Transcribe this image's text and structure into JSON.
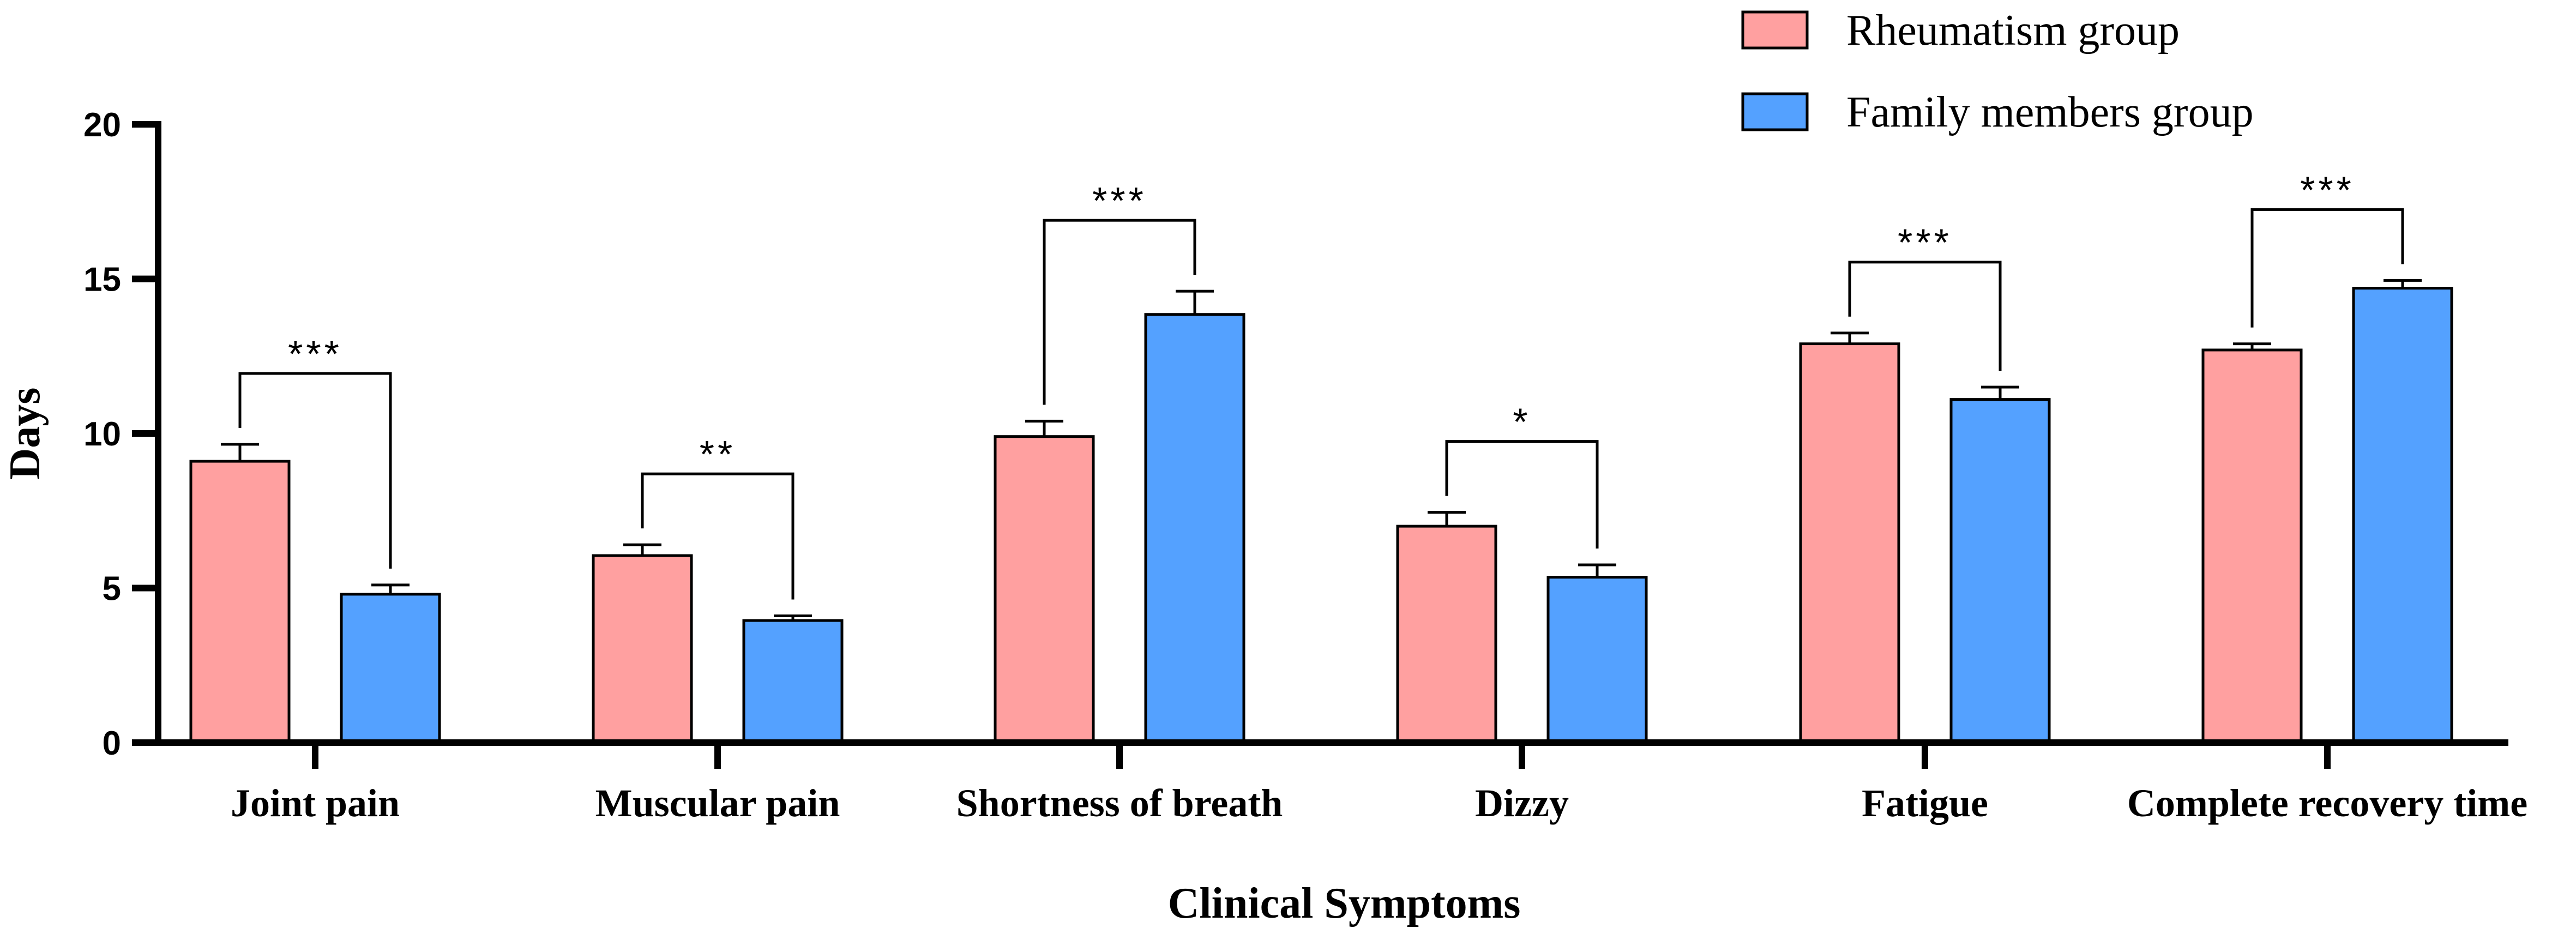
{
  "chart_data": {
    "type": "bar",
    "title": "",
    "xlabel": "Clinical Symptoms",
    "ylabel": "Days",
    "ylim": [
      0,
      20
    ],
    "yticks": [
      "0",
      "5",
      "10",
      "15",
      "20"
    ],
    "categories": [
      "Joint pain",
      "Muscular pain",
      "Shortness of breath",
      "Dizzy",
      "Fatigue",
      "Complete recovery time"
    ],
    "series": [
      {
        "name": "Rheumatism group",
        "color": "#FFA0A0",
        "values": [
          9.1,
          6.05,
          9.9,
          7.0,
          12.9,
          12.7
        ],
        "errors": [
          0.55,
          0.35,
          0.5,
          0.45,
          0.35,
          0.2
        ]
      },
      {
        "name": "Family members group",
        "color": "#54A1FF",
        "values": [
          4.8,
          3.95,
          13.85,
          5.35,
          11.1,
          14.7
        ],
        "errors": [
          0.3,
          0.15,
          0.75,
          0.4,
          0.4,
          0.25
        ]
      }
    ],
    "significance": [
      "***",
      "**",
      "***",
      "*",
      "***",
      "***"
    ],
    "legend_position": "top-right",
    "grid": false
  }
}
